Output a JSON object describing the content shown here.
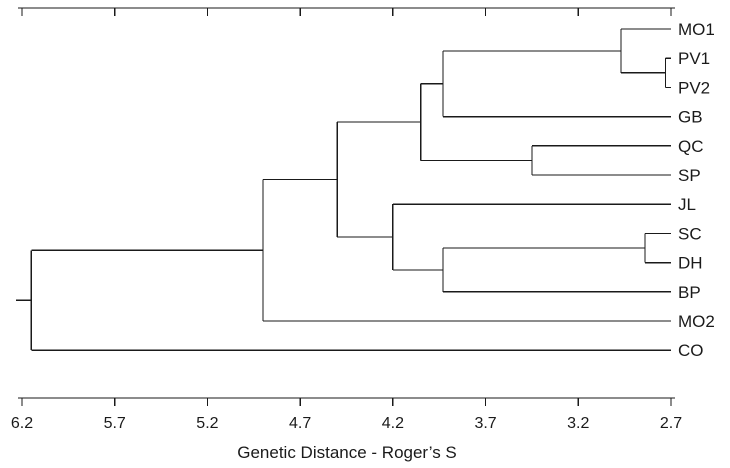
{
  "chart_data": {
    "type": "dendrogram",
    "xlabel": "Genetic Distance - Roger’s S",
    "axis": {
      "ticks": [
        6.2,
        5.7,
        5.2,
        4.7,
        4.2,
        3.7,
        3.2,
        2.7
      ],
      "tick_labels": [
        "6.2",
        "5.7",
        "5.2",
        "4.7",
        "4.2",
        "3.7",
        "3.2",
        "2.7"
      ],
      "range": [
        6.2,
        2.7
      ],
      "reversed": true
    },
    "leaves": [
      "MO1",
      "PV1",
      "PV2",
      "GB",
      "QC",
      "SP",
      "JL",
      "SC",
      "DH",
      "BP",
      "MO2",
      "CO"
    ],
    "tree": {
      "h": 6.15,
      "children": [
        {
          "h": 4.9,
          "children": [
            {
              "h": 4.5,
              "children": [
                {
                  "h": 4.05,
                  "children": [
                    {
                      "h": 3.93,
                      "children": [
                        {
                          "h": 2.97,
                          "children": [
                            {
                              "leaf": "MO1"
                            },
                            {
                              "h": 2.73,
                              "children": [
                                {
                                  "leaf": "PV1"
                                },
                                {
                                  "leaf": "PV2"
                                }
                              ]
                            }
                          ]
                        },
                        {
                          "leaf": "GB"
                        }
                      ]
                    },
                    {
                      "h": 3.45,
                      "children": [
                        {
                          "leaf": "QC"
                        },
                        {
                          "leaf": "SP"
                        }
                      ]
                    }
                  ]
                },
                {
                  "h": 4.2,
                  "children": [
                    {
                      "leaf": "JL"
                    },
                    {
                      "h": 3.93,
                      "children": [
                        {
                          "h": 2.84,
                          "children": [
                            {
                              "leaf": "SC"
                            },
                            {
                              "leaf": "DH"
                            }
                          ]
                        },
                        {
                          "leaf": "BP"
                        }
                      ]
                    }
                  ]
                }
              ]
            },
            {
              "leaf": "MO2"
            }
          ]
        },
        {
          "leaf": "CO"
        }
      ]
    },
    "line_color": "#1a1a1a"
  }
}
